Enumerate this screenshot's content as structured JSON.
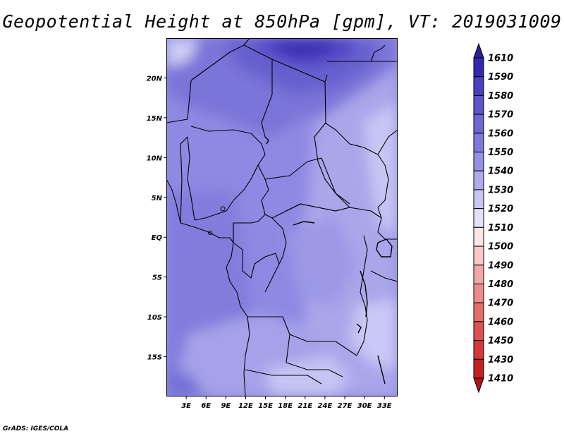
{
  "title": "Geopotential Height at 850hPa [gpm], VT: 2019031009",
  "credit": "GrADS: IGES/COLA",
  "map": {
    "projection": "latlon",
    "lon_range": [
      0,
      35
    ],
    "lat_range": [
      -20,
      25
    ],
    "lon_ticks": [
      "3E",
      "6E",
      "9E",
      "12E",
      "15E",
      "18E",
      "21E",
      "24E",
      "27E",
      "30E",
      "33E"
    ],
    "lat_ticks": [
      "20N",
      "15N",
      "10N",
      "5N",
      "EQ",
      "5S",
      "10S",
      "15S"
    ],
    "boundaries": "country borders, black",
    "field_range_gpm": [
      1520,
      1590
    ]
  },
  "colorbar": {
    "labels": [
      "1610",
      "1590",
      "1580",
      "1570",
      "1560",
      "1550",
      "1540",
      "1530",
      "1520",
      "1510",
      "1500",
      "1490",
      "1480",
      "1470",
      "1460",
      "1450",
      "1430",
      "1410"
    ],
    "colors": [
      "#2a1f9c",
      "#3429ae",
      "#4a40c2",
      "#5c55cc",
      "#6d67d4",
      "#7e79dc",
      "#9591e4",
      "#aeaaec",
      "#c8c6f4",
      "#e4e2fa",
      "#fde6e6",
      "#f9c9c9",
      "#f2a8a8",
      "#eb8b8b",
      "#e46d6d",
      "#dd5050",
      "#d43838",
      "#c42020",
      "#b01414"
    ]
  }
}
